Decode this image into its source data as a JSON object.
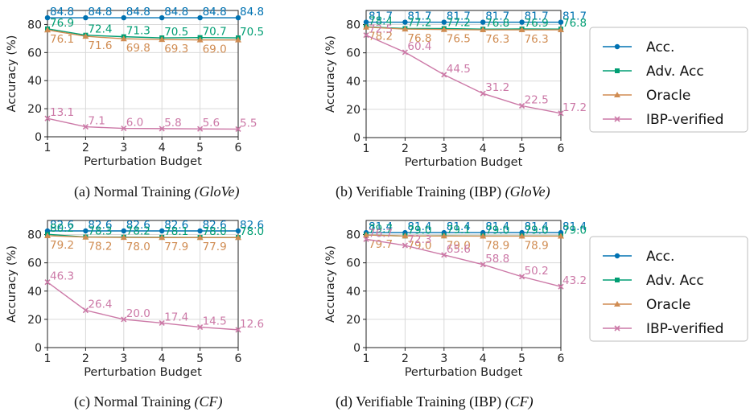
{
  "series_styles": [
    {
      "name": "Acc.",
      "color": "#0072b2",
      "marker": "circle"
    },
    {
      "name": "Adv. Acc",
      "color": "#009e73",
      "marker": "square"
    },
    {
      "name": "Oracle",
      "color": "#d08c52",
      "marker": "triangle"
    },
    {
      "name": "IBP-verified",
      "color": "#cc79a7",
      "marker": "x"
    }
  ],
  "chart_data": [
    {
      "type": "line",
      "caption_prefix": "(a) Normal Training ",
      "caption_italic": "(GloVe)",
      "xlabel": "Perturbation Budget",
      "ylabel": "Accuracy (%)",
      "x": [
        1,
        2,
        3,
        4,
        5,
        6
      ],
      "xlim": [
        1,
        6
      ],
      "ylim": [
        0,
        90
      ],
      "yticks": [
        0,
        20,
        40,
        60,
        80
      ],
      "grid": true,
      "series": [
        {
          "name": "Acc.",
          "values": [
            84.8,
            84.8,
            84.8,
            84.8,
            84.8,
            84.8
          ],
          "labels": [
            "84.8",
            "84.8",
            "84.8",
            "84.8",
            "84.8",
            "84.8"
          ]
        },
        {
          "name": "Adv. Acc",
          "values": [
            76.9,
            72.4,
            71.3,
            70.5,
            70.7,
            70.5
          ],
          "labels": [
            "76.9",
            "72.4",
            "71.3",
            "70.5",
            "70.7",
            "70.5"
          ]
        },
        {
          "name": "Oracle",
          "values": [
            76.1,
            71.6,
            69.8,
            69.3,
            69.0,
            69.0
          ],
          "labels": [
            "76.1",
            "71.6",
            "69.8",
            "69.3",
            "69.0",
            ""
          ]
        },
        {
          "name": "IBP-verified",
          "values": [
            13.1,
            7.1,
            6.0,
            5.8,
            5.6,
            5.5
          ],
          "labels": [
            "13.1",
            "7.1",
            "6.0",
            "5.8",
            "5.6",
            "5.5"
          ]
        }
      ]
    },
    {
      "type": "line",
      "caption_prefix": "(b) Verifiable Training (IBP) ",
      "caption_italic": "(GloVe)",
      "xlabel": "Perturbation Budget",
      "ylabel": "Accuracy (%)",
      "x": [
        1,
        2,
        3,
        4,
        5,
        6
      ],
      "xlim": [
        1,
        6
      ],
      "ylim": [
        0,
        90
      ],
      "yticks": [
        0,
        20,
        40,
        60,
        80
      ],
      "grid": true,
      "series": [
        {
          "name": "Acc.",
          "values": [
            81.7,
            81.7,
            81.7,
            81.7,
            81.7,
            81.7
          ],
          "labels": [
            "81.7",
            "81.7",
            "81.7",
            "81.7",
            "81.7",
            "81.7"
          ]
        },
        {
          "name": "Adv. Acc",
          "values": [
            78.4,
            77.2,
            77.2,
            76.8,
            76.9,
            76.8
          ],
          "labels": [
            "78.4",
            "77.2",
            "77.2",
            "76.8",
            "76.9",
            "76.8"
          ]
        },
        {
          "name": "Oracle",
          "values": [
            78.2,
            76.8,
            76.5,
            76.3,
            76.3,
            76.3
          ],
          "labels": [
            "78.2",
            "76.8",
            "76.5",
            "76.3",
            "76.3",
            ""
          ]
        },
        {
          "name": "IBP-verified",
          "values": [
            72.5,
            60.4,
            44.5,
            31.2,
            22.5,
            17.2
          ],
          "labels": [
            "72.5",
            "60.4",
            "44.5",
            "31.2",
            "22.5",
            "17.2"
          ]
        }
      ]
    },
    {
      "type": "line",
      "caption_prefix": "(c) Normal Training ",
      "caption_italic": "(CF)",
      "xlabel": "Perturbation Budget",
      "ylabel": "Accuracy (%)",
      "x": [
        1,
        2,
        3,
        4,
        5,
        6
      ],
      "xlim": [
        1,
        6
      ],
      "ylim": [
        0,
        90
      ],
      "yticks": [
        0,
        20,
        40,
        60,
        80
      ],
      "grid": true,
      "series": [
        {
          "name": "Acc.",
          "values": [
            82.6,
            82.6,
            82.6,
            82.6,
            82.6,
            82.6
          ],
          "labels": [
            "82.6",
            "82.6",
            "82.6",
            "82.6",
            "82.6",
            "82.6"
          ]
        },
        {
          "name": "Adv. Acc",
          "values": [
            80.2,
            78.3,
            78.2,
            78.1,
            78.0,
            78.0
          ],
          "labels": [
            "80.2",
            "78.3",
            "78.2",
            "78.1",
            "78.0",
            "78.0"
          ]
        },
        {
          "name": "Oracle",
          "values": [
            79.2,
            78.2,
            78.0,
            77.9,
            77.9,
            77.9
          ],
          "labels": [
            "79.2",
            "78.2",
            "78.0",
            "77.9",
            "77.9",
            ""
          ]
        },
        {
          "name": "IBP-verified",
          "values": [
            46.3,
            26.4,
            20.0,
            17.4,
            14.5,
            12.6
          ],
          "labels": [
            "46.3",
            "26.4",
            "20.0",
            "17.4",
            "14.5",
            "12.6"
          ]
        }
      ]
    },
    {
      "type": "line",
      "caption_prefix": "(d) Verifiable Training (IBP) ",
      "caption_italic": "(CF)",
      "xlabel": "Perturbation Budget",
      "ylabel": "Accuracy (%)",
      "x": [
        1,
        2,
        3,
        4,
        5,
        6
      ],
      "xlim": [
        1,
        6
      ],
      "ylim": [
        0,
        90
      ],
      "yticks": [
        0,
        20,
        40,
        60,
        80
      ],
      "grid": true,
      "series": [
        {
          "name": "Acc.",
          "values": [
            81.4,
            81.4,
            81.4,
            81.4,
            81.4,
            81.4
          ],
          "labels": [
            "81.4",
            "81.4",
            "81.4",
            "81.4",
            "81.4",
            "81.4"
          ]
        },
        {
          "name": "Adv. Acc",
          "values": [
            79.7,
            79.0,
            79.1,
            79.0,
            79.0,
            79.0
          ],
          "labels": [
            "79.7",
            "79.0",
            "79.1",
            "79.0",
            "79.0",
            "79.0"
          ]
        },
        {
          "name": "Oracle",
          "values": [
            79.7,
            79.0,
            79.0,
            78.9,
            78.9,
            78.9
          ],
          "labels": [
            "79.7",
            "79.0",
            "79.0",
            "78.9",
            "78.9",
            ""
          ]
        },
        {
          "name": "IBP-verified",
          "values": [
            76.7,
            72.3,
            65.6,
            58.8,
            50.2,
            43.2
          ],
          "labels": [
            "76.7",
            "72.3",
            "65.6",
            "58.8",
            "50.2",
            "43.2"
          ]
        }
      ]
    }
  ]
}
